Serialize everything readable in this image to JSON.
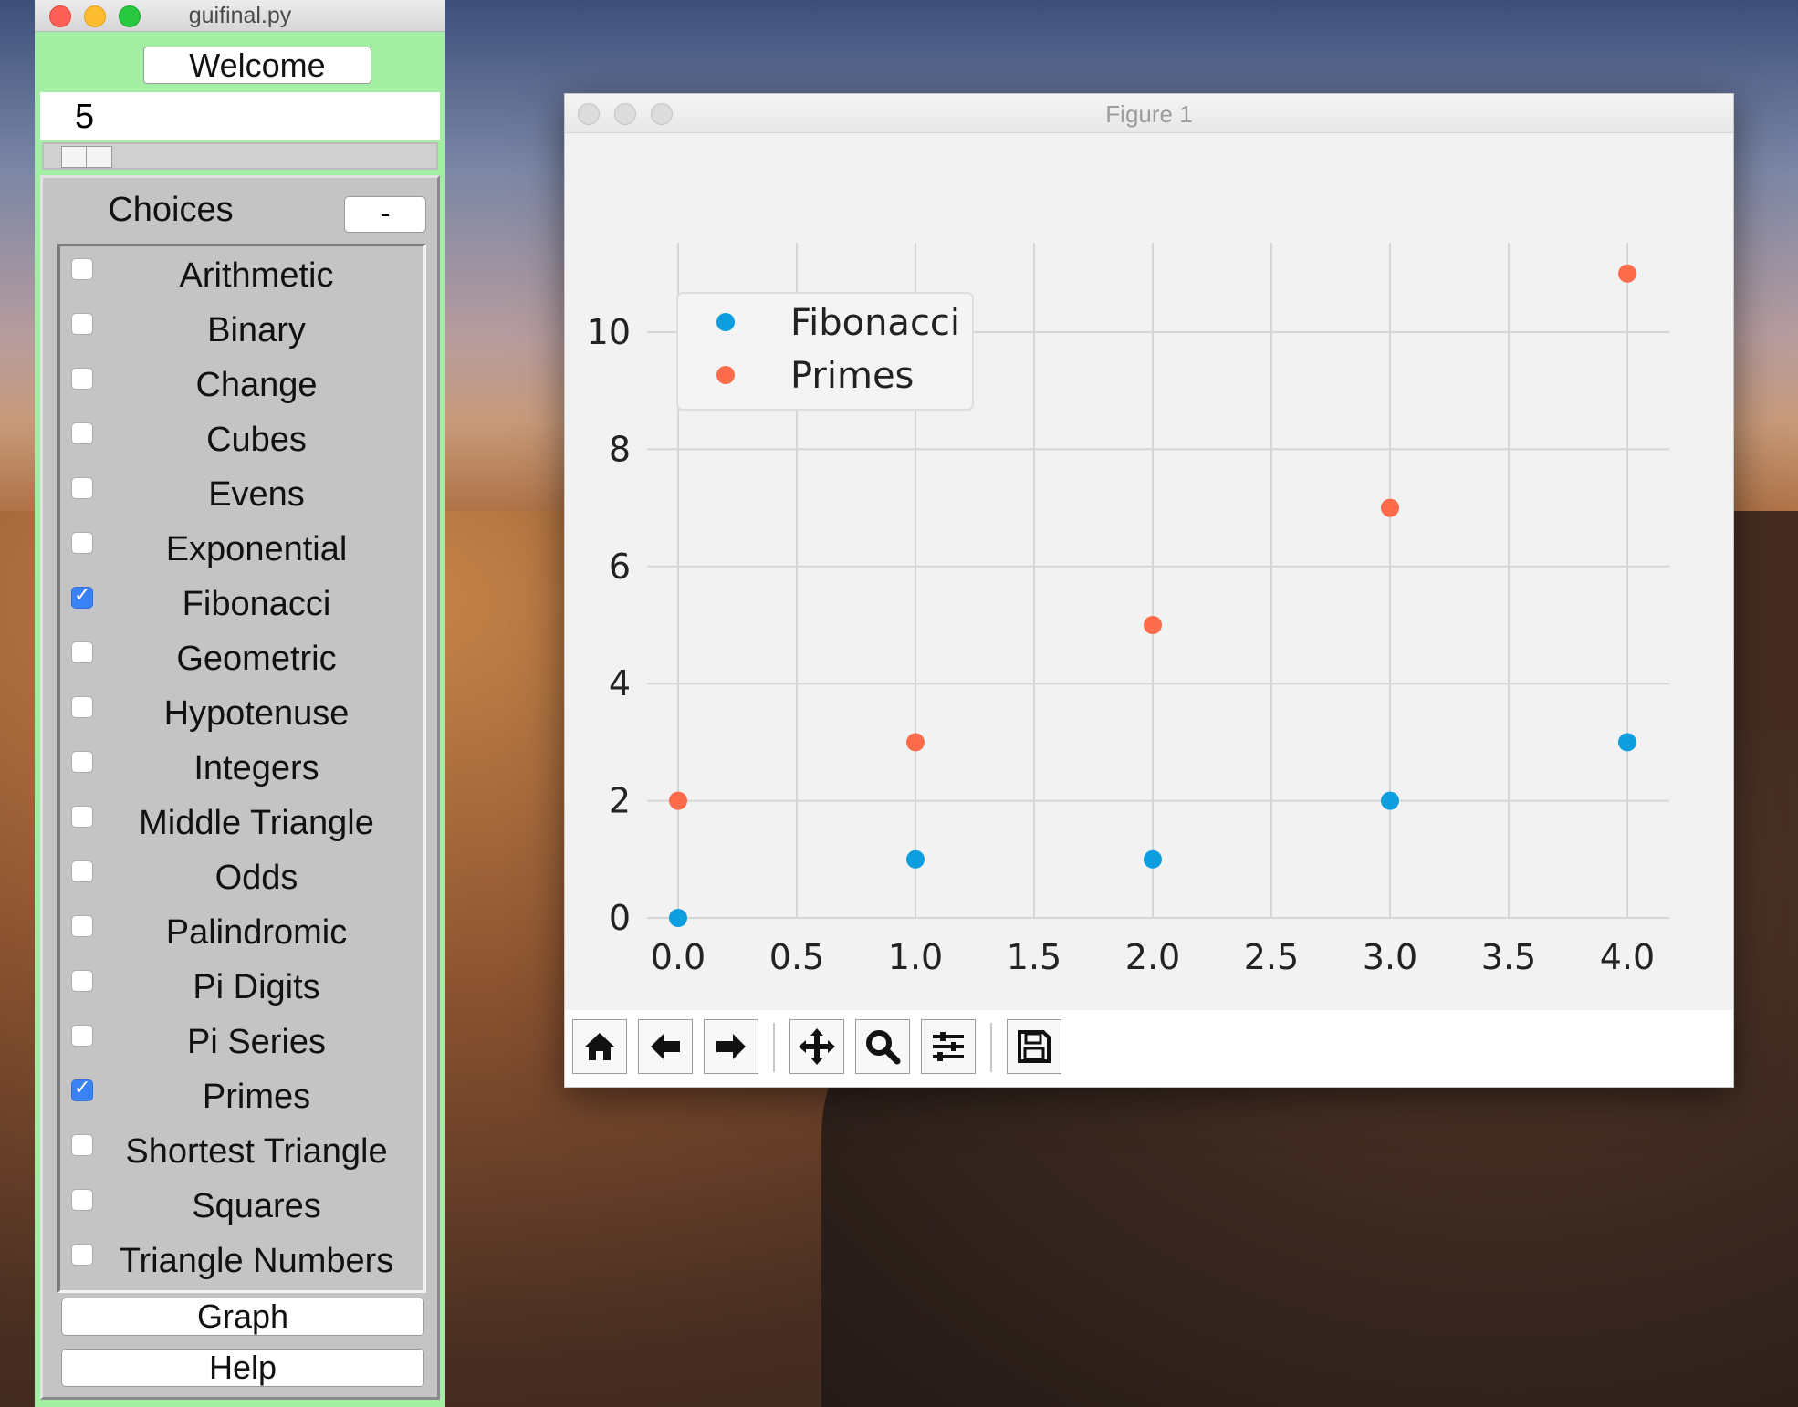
{
  "gui": {
    "title": "guifinal.py",
    "welcome_label": "Welcome",
    "entry_value": "5",
    "scale_value": 0.05,
    "choices_label": "Choices",
    "minus_label": "-",
    "items": [
      {
        "label": "Arithmetic",
        "checked": false
      },
      {
        "label": "Binary",
        "checked": false
      },
      {
        "label": "Change",
        "checked": false
      },
      {
        "label": "Cubes",
        "checked": false
      },
      {
        "label": "Evens",
        "checked": false
      },
      {
        "label": "Exponential",
        "checked": false
      },
      {
        "label": "Fibonacci",
        "checked": true
      },
      {
        "label": "Geometric",
        "checked": false
      },
      {
        "label": "Hypotenuse",
        "checked": false
      },
      {
        "label": "Integers",
        "checked": false
      },
      {
        "label": "Middle Triangle",
        "checked": false
      },
      {
        "label": "Odds",
        "checked": false
      },
      {
        "label": "Palindromic",
        "checked": false
      },
      {
        "label": "Pi Digits",
        "checked": false
      },
      {
        "label": "Pi Series",
        "checked": false
      },
      {
        "label": "Primes",
        "checked": true
      },
      {
        "label": "Shortest Triangle",
        "checked": false
      },
      {
        "label": "Squares",
        "checked": false
      },
      {
        "label": "Triangle Numbers",
        "checked": false
      }
    ],
    "graph_label": "Graph",
    "help_label": "Help"
  },
  "figure": {
    "title": "Figure 1",
    "toolbar": [
      "home-icon",
      "back-arrow-icon",
      "forward-arrow-icon",
      "pan-icon",
      "zoom-icon",
      "configure-subplots-icon",
      "save-icon"
    ]
  },
  "chart_data": {
    "type": "scatter",
    "title": "",
    "xlabel": "",
    "ylabel": "",
    "xlim": [
      -0.2,
      4.2
    ],
    "ylim": [
      -0.55,
      11.5
    ],
    "xticks": [
      "0.0",
      "0.5",
      "1.0",
      "1.5",
      "2.0",
      "2.5",
      "3.0",
      "3.5",
      "4.0"
    ],
    "yticks": [
      "0",
      "2",
      "4",
      "6",
      "8",
      "10"
    ],
    "grid": true,
    "legend_position": "top-left",
    "series": [
      {
        "name": "Fibonacci",
        "color": "#0d9ee0",
        "x": [
          0,
          1,
          2,
          3,
          4
        ],
        "y": [
          0,
          1,
          1,
          2,
          3
        ]
      },
      {
        "name": "Primes",
        "color": "#fc6b4a",
        "x": [
          0,
          1,
          2,
          3,
          4
        ],
        "y": [
          2,
          3,
          5,
          7,
          11
        ]
      }
    ]
  }
}
